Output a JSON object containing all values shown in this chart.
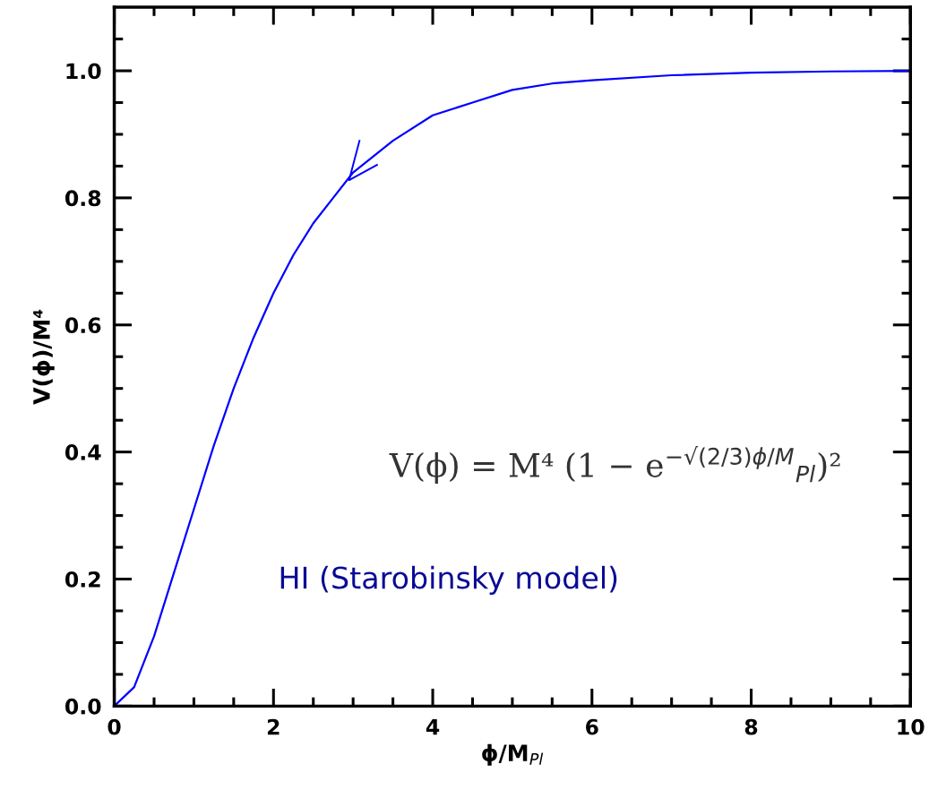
{
  "chart_data": {
    "type": "line",
    "xlabel": "ϕ/M$_{Pl}$",
    "ylabel": "V(ϕ)/M⁴",
    "x": [
      0,
      0.25,
      0.5,
      0.75,
      1,
      1.25,
      1.5,
      1.75,
      2,
      2.25,
      2.5,
      2.75,
      3,
      3.5,
      4,
      4.5,
      5,
      5.5,
      6,
      7,
      8,
      9,
      10
    ],
    "series": [
      {
        "color": "#0000ff",
        "values": [
          0,
          0.03,
          0.11,
          0.21,
          0.31,
          0.41,
          0.5,
          0.58,
          0.65,
          0.71,
          0.76,
          0.8,
          0.84,
          0.89,
          0.93,
          0.95,
          0.97,
          0.98,
          0.985,
          0.993,
          0.997,
          0.999,
          1.0
        ]
      }
    ],
    "xlim": [
      0,
      10
    ],
    "ylim": [
      0,
      1.1
    ],
    "xticks": [
      0,
      {
        "value": 0.5,
        "label": null
      },
      {
        "value": 1,
        "label": null
      },
      {
        "value": 1.5,
        "label": null
      },
      2,
      {
        "value": 2.5,
        "label": null
      },
      {
        "value": 3,
        "label": null
      },
      {
        "value": 3.5,
        "label": null
      },
      4,
      {
        "value": 4.5,
        "label": null
      },
      {
        "value": 5,
        "label": null
      },
      {
        "value": 5.5,
        "label": null
      },
      6,
      {
        "value": 6.5,
        "label": null
      },
      {
        "value": 7,
        "label": null
      },
      {
        "value": 7.5,
        "label": null
      },
      8,
      {
        "value": 8.5,
        "label": null
      },
      {
        "value": 9,
        "label": null
      },
      {
        "value": 9.5,
        "label": null
      },
      10
    ],
    "yticks": [
      {
        "value": 0,
        "label": "0.0"
      },
      {
        "value": 0.05,
        "label": null
      },
      {
        "value": 0.1,
        "label": null
      },
      {
        "value": 0.15,
        "label": null
      },
      0.2,
      {
        "value": 0.25,
        "label": null
      },
      {
        "value": 0.3,
        "label": null
      },
      {
        "value": 0.35,
        "label": null
      },
      0.4,
      {
        "value": 0.45,
        "label": null
      },
      {
        "value": 0.5,
        "label": null
      },
      {
        "value": 0.55,
        "label": null
      },
      0.6,
      {
        "value": 0.65,
        "label": null
      },
      {
        "value": 0.7,
        "label": null
      },
      {
        "value": 0.75,
        "label": null
      },
      0.8,
      {
        "value": 0.85,
        "label": null
      },
      {
        "value": 0.9,
        "label": null
      },
      {
        "value": 0.95,
        "label": null
      },
      {
        "value": 1,
        "label": "1.0"
      },
      {
        "value": 1.05,
        "label": null
      }
    ],
    "grid": false,
    "legend": false,
    "marker": "none",
    "line_style": "solid",
    "annotations": [
      "V(ϕ) = M⁴ (1 − e$^{−√(2/3)ϕ/M}$$_{Pl}$)²",
      "HI (Starobinsky model)"
    ]
  }
}
